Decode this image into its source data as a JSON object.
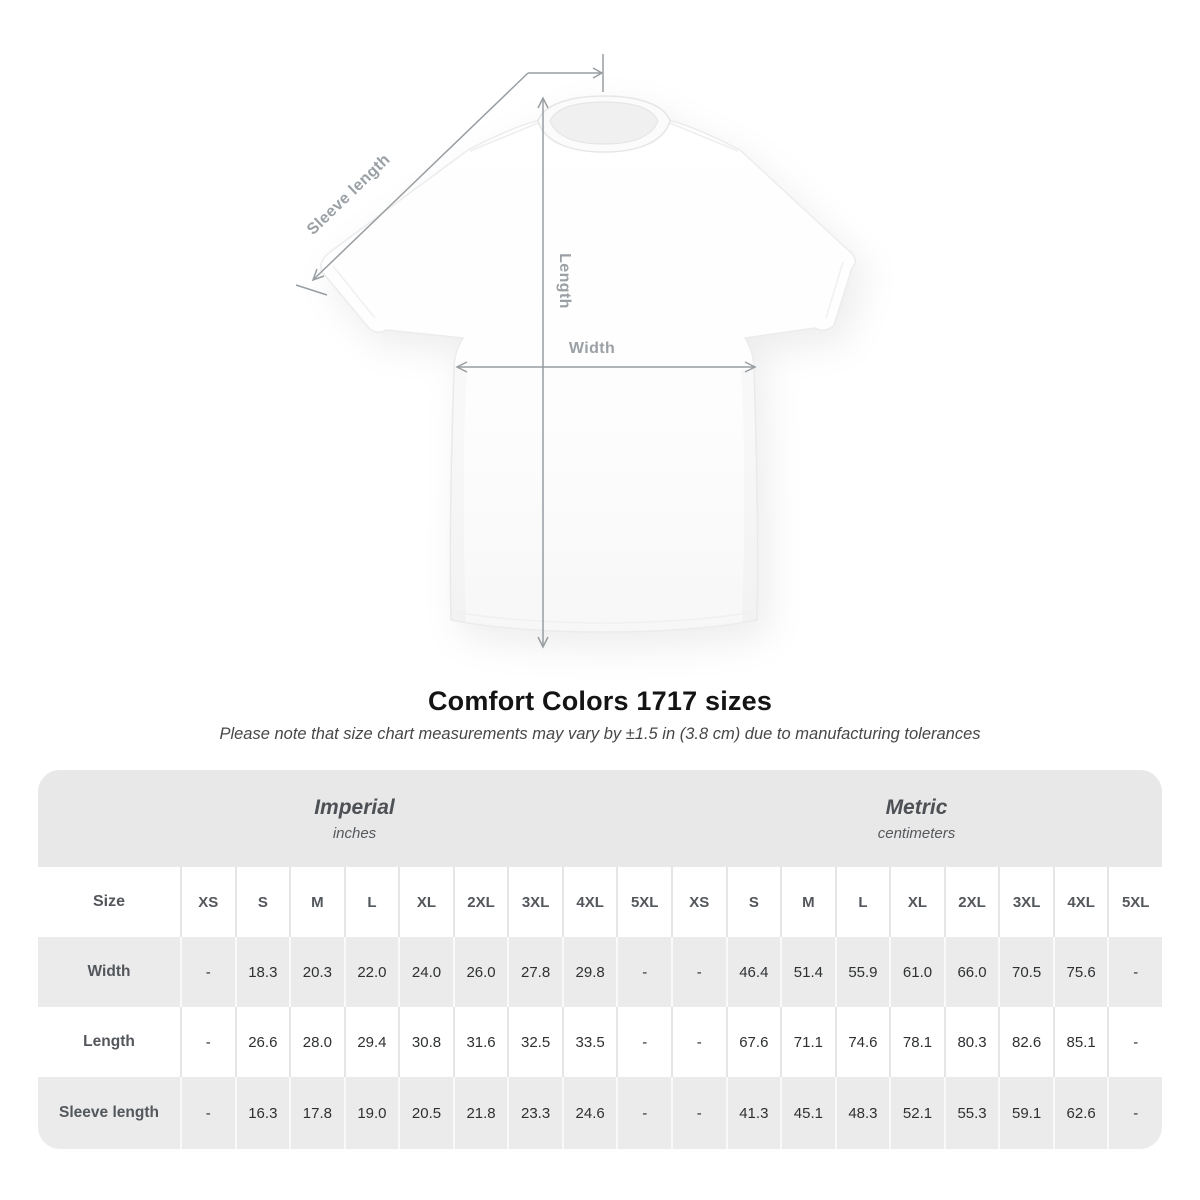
{
  "diagram": {
    "labels": {
      "sleeve_length": "Sleeve length",
      "length": "Length",
      "width": "Width"
    },
    "line_color": "#989da1",
    "label_color": "#9ba0a5"
  },
  "title": "Comfort Colors 1717 sizes",
  "subtitle": "Please note that size chart measurements may vary by ±1.5 in (3.8 cm) due to manufacturing tolerances",
  "table": {
    "size_label": "Size",
    "unit_groups": [
      {
        "name": "Imperial",
        "unit": "inches"
      },
      {
        "name": "Metric",
        "unit": "centimeters"
      }
    ],
    "sizes": [
      "XS",
      "S",
      "M",
      "L",
      "XL",
      "2XL",
      "3XL",
      "4XL",
      "5XL"
    ],
    "rows": [
      {
        "label": "Width",
        "imperial": [
          "-",
          "18.3",
          "20.3",
          "22.0",
          "24.0",
          "26.0",
          "27.8",
          "29.8",
          "-"
        ],
        "metric": [
          "-",
          "46.4",
          "51.4",
          "55.9",
          "61.0",
          "66.0",
          "70.5",
          "75.6",
          "-"
        ]
      },
      {
        "label": "Length",
        "imperial": [
          "-",
          "26.6",
          "28.0",
          "29.4",
          "30.8",
          "31.6",
          "32.5",
          "33.5",
          "-"
        ],
        "metric": [
          "-",
          "67.6",
          "71.1",
          "74.6",
          "78.1",
          "80.3",
          "82.6",
          "85.1",
          "-"
        ]
      },
      {
        "label": "Sleeve length",
        "imperial": [
          "-",
          "16.3",
          "17.8",
          "19.0",
          "20.5",
          "21.8",
          "23.3",
          "24.6",
          "-"
        ],
        "metric": [
          "-",
          "41.3",
          "45.1",
          "48.3",
          "52.1",
          "55.3",
          "59.1",
          "62.6",
          "-"
        ]
      }
    ],
    "colors": {
      "band_background": "#e8e8e8",
      "alt_row_background": "#ebebeb",
      "header_text": "#53575b",
      "value_text": "#2e3032"
    }
  }
}
